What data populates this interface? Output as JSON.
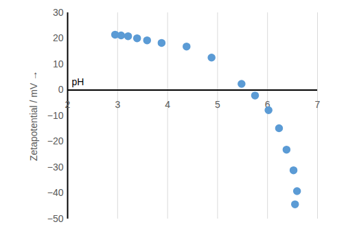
{
  "chart_data": {
    "type": "scatter",
    "x_label": "pH",
    "y_label": "Zetapotential / mV",
    "x": [
      2.95,
      3.07,
      3.21,
      3.39,
      3.59,
      3.88,
      4.38,
      4.88,
      5.48,
      5.75,
      6.02,
      6.23,
      6.38,
      6.52,
      6.59,
      6.55
    ],
    "values": [
      21.5,
      21.2,
      20.9,
      20.1,
      19.3,
      18.3,
      16.9,
      12.6,
      2.4,
      -2.1,
      -7.8,
      -14.8,
      -23.1,
      -31.1,
      -39.2,
      -44.3
    ],
    "color": "#5b9bd5",
    "marker": "circle",
    "xlim": [
      2,
      7
    ],
    "xticks": [
      2,
      3,
      4,
      5,
      6,
      7
    ],
    "ylim": [
      -50,
      30
    ],
    "yticks": [
      -50,
      -40,
      -30,
      -20,
      -10,
      0,
      10,
      20,
      30
    ],
    "grid": "x"
  }
}
